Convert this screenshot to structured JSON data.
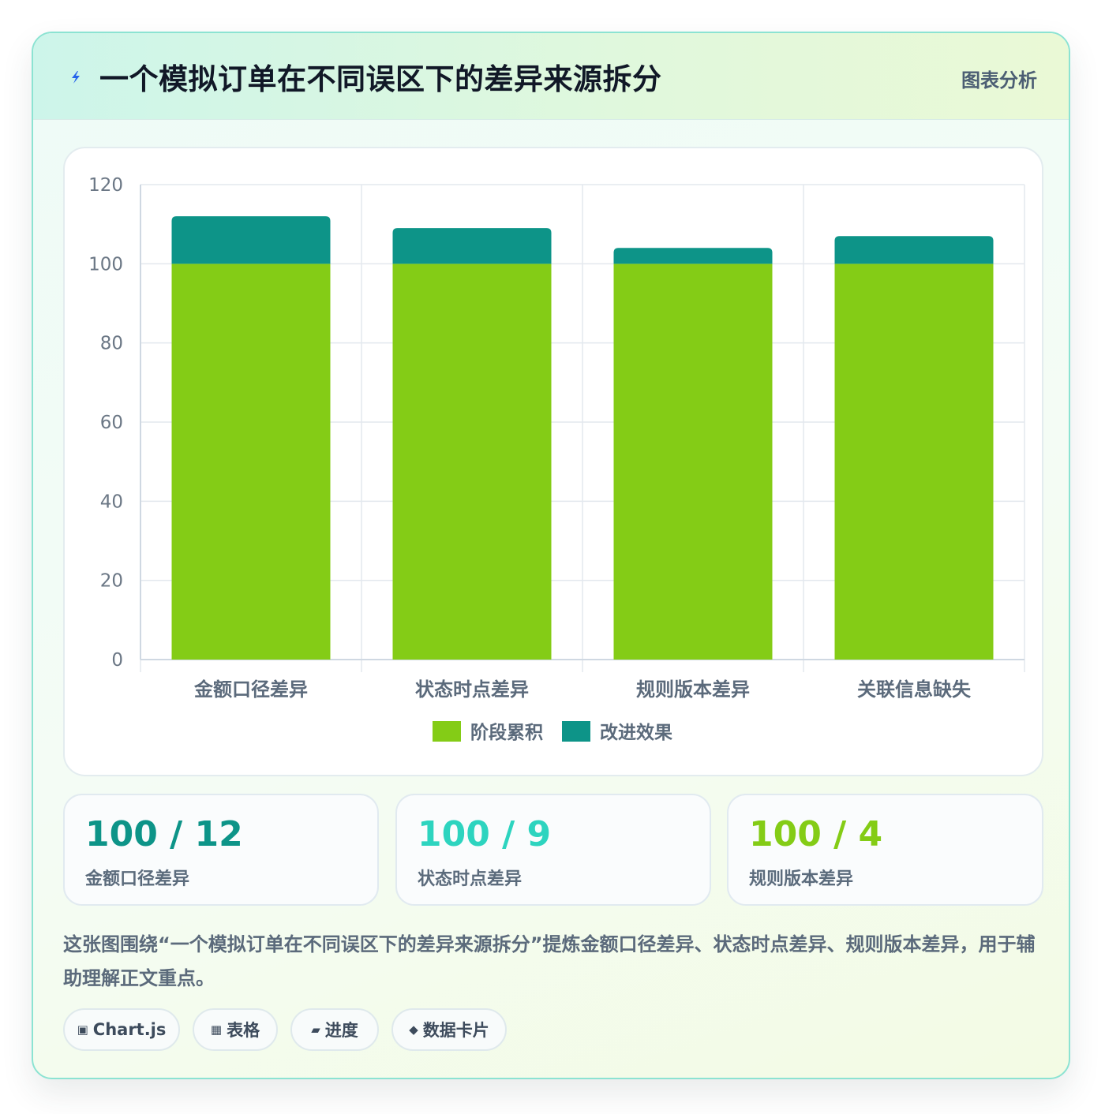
{
  "header": {
    "title": "一个模拟订单在不同误区下的差异来源拆分",
    "tag": "图表分析",
    "icon": "lightning-icon"
  },
  "chart_data": {
    "type": "bar",
    "stacked": true,
    "categories": [
      "金额口径差异",
      "状态时点差异",
      "规则版本差异",
      "关联信息缺失"
    ],
    "series": [
      {
        "name": "阶段累积",
        "color": "#84cc16",
        "values": [
          100,
          100,
          100,
          100
        ]
      },
      {
        "name": "改进效果",
        "color": "#0d9488",
        "values": [
          12,
          9,
          4,
          7
        ]
      }
    ],
    "ylim": [
      0,
      120
    ],
    "yticks": [
      0,
      20,
      40,
      60,
      80,
      100,
      120
    ],
    "grid": true,
    "legend": "bottom"
  },
  "stats": [
    {
      "value": "100 / 12",
      "label": "金额口径差异",
      "color": "#0d9488"
    },
    {
      "value": "100 / 9",
      "label": "状态时点差异",
      "color": "#2dd4bf"
    },
    {
      "value": "100 / 4",
      "label": "规则版本差异",
      "color": "#84cc16"
    }
  ],
  "description": "这张图围绕“一个模拟订单在不同误区下的差异来源拆分”提炼金额口径差异、状态时点差异、规则版本差异，用于辅助理解正文重点。",
  "tags": [
    {
      "icon": "▣",
      "label": "Chart.js"
    },
    {
      "icon": "▦",
      "label": "表格"
    },
    {
      "icon": "▰",
      "label": "进度"
    },
    {
      "icon": "◆",
      "label": "数据卡片"
    }
  ]
}
